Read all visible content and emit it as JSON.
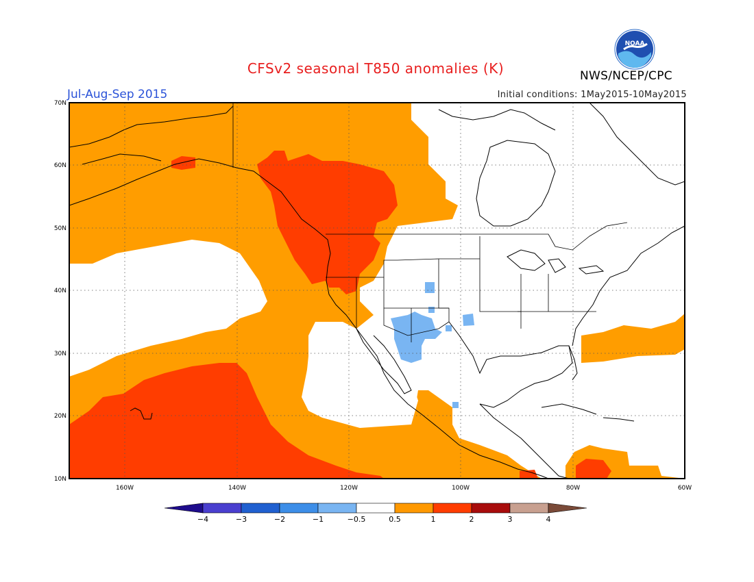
{
  "header": {
    "title": "CFSv2 seasonal T850 anomalies (K)",
    "season": "Jul-Aug-Sep 2015",
    "initial_conditions": "Initial conditions: 1May2015-10May2015",
    "agency": "NWS/NCEP/CPC",
    "logo_text": "NOAA"
  },
  "map": {
    "lat_labels": [
      "70N",
      "60N",
      "50N",
      "40N",
      "30N",
      "20N",
      "10N"
    ],
    "lon_labels": [
      "160W",
      "140W",
      "120W",
      "100W",
      "80W",
      "60W"
    ],
    "extent": {
      "lon_min": -170,
      "lon_max": -60,
      "lat_min": 10,
      "lat_max": 70
    }
  },
  "colorbar": {
    "tick_labels": [
      "-4",
      "-3",
      "-2",
      "-1",
      "-0.5",
      "0.5",
      "1",
      "2",
      "3",
      "4"
    ],
    "colors": [
      "#1e0c8c",
      "#4a3fcf",
      "#2060d0",
      "#3d8ee8",
      "#79b5f2",
      "#ffffff",
      "#ff9900",
      "#ff3d00",
      "#a80c0c",
      "#c8a090",
      "#7a4a38"
    ]
  },
  "colors": {
    "anom_05_1": "#ff9d00",
    "anom_1_2": "#ff3d00",
    "anom_neg": "#79b5f2",
    "land_outline": "#000000"
  }
}
